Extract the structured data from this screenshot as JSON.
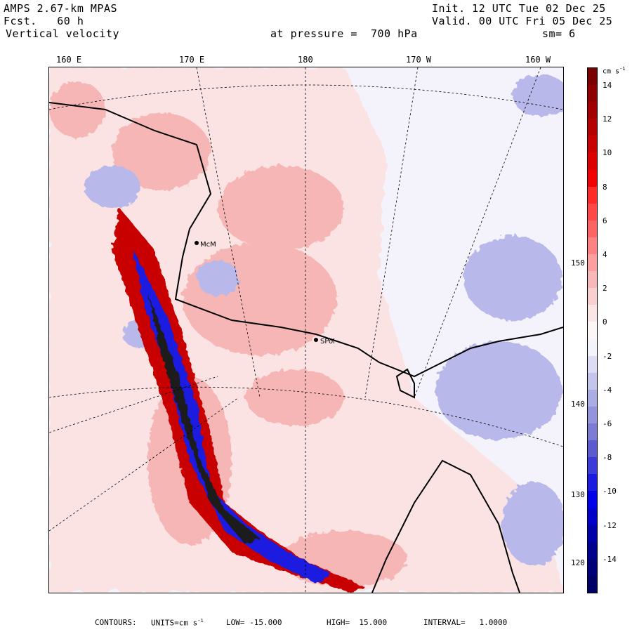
{
  "header": {
    "model": "AMPS 2.67-km MPAS",
    "init": "Init. 12 UTC Tue 02 Dec 25",
    "forecast": "Fcst.   60 h",
    "valid": "Valid. 00 UTC Fri 05 Dec 25",
    "field": "Vertical velocity",
    "level": "at pressure =  700 hPa",
    "smoothing": "sm= 6"
  },
  "longitude_labels": [
    "160 E",
    "170 E",
    "180",
    "170 W",
    "160 W"
  ],
  "latitude_labels": [
    "150 W",
    "140 W",
    "130 W",
    "120 W"
  ],
  "colorbar": {
    "units": "cm s",
    "units_exp": "-1",
    "tick_labels": [
      "14",
      "12",
      "10",
      "8",
      "6",
      "4",
      "2",
      "0",
      "-2",
      "-4",
      "-6",
      "-8",
      "-10",
      "-12",
      "-14"
    ],
    "levels": [
      15,
      14,
      13,
      12,
      11,
      10,
      9,
      8,
      7,
      6,
      5,
      4,
      3,
      2,
      1,
      0,
      -1,
      -2,
      -3,
      -4,
      -5,
      -6,
      -7,
      -8,
      -9,
      -10,
      -11,
      -12,
      -13,
      -14,
      -15,
      -16
    ],
    "colors": [
      "#7a0000",
      "#8e0000",
      "#a20000",
      "#b40000",
      "#c80000",
      "#dc0000",
      "#f00000",
      "#ff2a2a",
      "#ff4848",
      "#ff6464",
      "#ff8282",
      "#ff9e9e",
      "#f6b8b8",
      "#f8d0d0",
      "#fbe6e6",
      "#fdf6f6",
      "#f3f3fb",
      "#dcdcf4",
      "#c4c4ec",
      "#acace4",
      "#9494dc",
      "#7c7cd4",
      "#5c5cd0",
      "#3c3cd8",
      "#1c1ce0",
      "#0000e8",
      "#0000c8",
      "#0000aa",
      "#00008e",
      "#000078",
      "#000064"
    ]
  },
  "footer": {
    "contours": "CONTOURS:",
    "units_label": "UNITS=cm s",
    "units_exp": "-1",
    "low": "LOW= -15.000",
    "high": "HIGH=  15.000",
    "interval": "INTERVAL=   1.0000"
  },
  "station_labels": [
    "McM",
    "SPol"
  ]
}
